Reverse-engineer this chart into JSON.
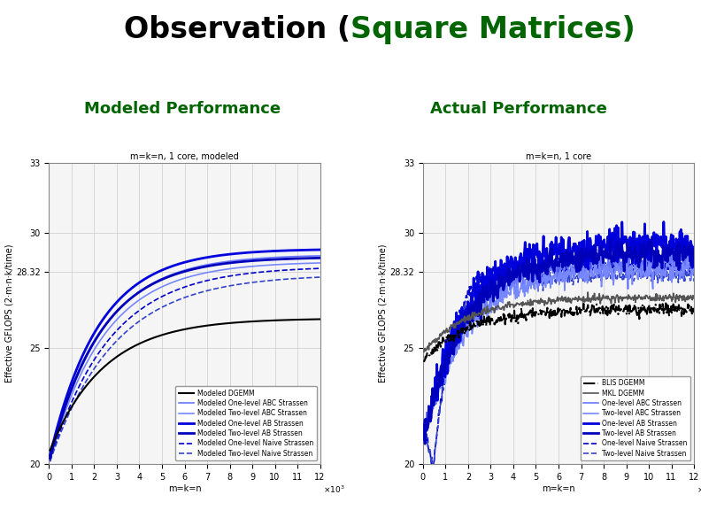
{
  "title_black_part": "Observation (",
  "title_green_part": "Square Matrices",
  "title_end_part": ")",
  "subtitle_left": "Modeled Performance",
  "subtitle_right": "Actual Performance",
  "left_plot_title": "m=k=n, 1 core, modeled",
  "right_plot_title": "m=k=n, 1 core",
  "xlabel": "m=k=n",
  "ylabel": "Effective GFLOPS (2·m·n·k/time)",
  "xlim": [
    0,
    12000
  ],
  "ylim": [
    20,
    33
  ],
  "yticks": [
    20,
    25,
    28.32,
    30,
    33
  ],
  "ytick_labels": [
    "20",
    "25",
    "28.32",
    "30",
    "33"
  ],
  "xticks": [
    0,
    1000,
    2000,
    3000,
    4000,
    5000,
    6000,
    7000,
    8000,
    9000,
    10000,
    11000,
    12000
  ],
  "xtick_labels": [
    "0",
    "1",
    "2",
    "3",
    "4",
    "5",
    "6",
    "7",
    "8",
    "9",
    "10",
    "11",
    "12"
  ],
  "background_color": "#ffffff",
  "plot_bg_color": "#f5f5f5",
  "grid_color": "#cccccc",
  "title_fontsize": 24,
  "subtitle_fontsize": 13,
  "axis_title_fontsize": 7,
  "axis_label_fontsize": 7,
  "tick_fontsize": 7,
  "legend_fontsize": 5.5,
  "green_color": "#006400",
  "black_color": "#000000",
  "dark_blue": "#0000cc",
  "light_blue": "#6666ff",
  "dark_gray": "#444444"
}
